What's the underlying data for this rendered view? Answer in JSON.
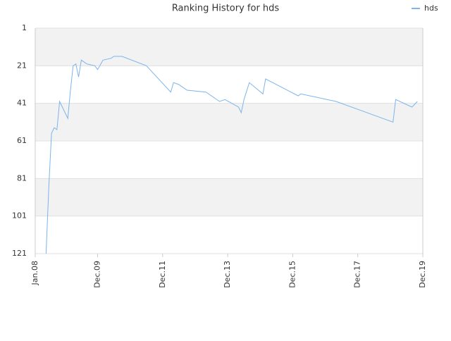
{
  "chart_data": {
    "type": "line",
    "title": "Ranking History for hds",
    "x": [
      "2008-05",
      "2008-06",
      "2008-07",
      "2008-08",
      "2008-09",
      "2008-10",
      "2009-01",
      "2009-02",
      "2009-03",
      "2009-04",
      "2009-05",
      "2009-06",
      "2009-08",
      "2009-11",
      "2009-12",
      "2010-02",
      "2010-05",
      "2010-06",
      "2010-09",
      "2011-06",
      "2012-03",
      "2012-04",
      "2012-06",
      "2012-09",
      "2013-04",
      "2013-09",
      "2013-11",
      "2014-04",
      "2014-05",
      "2014-06",
      "2014-08",
      "2015-01",
      "2015-02",
      "2016-02",
      "2016-03",
      "2017-04",
      "2019-01",
      "2019-02",
      "2019-08",
      "2019-10"
    ],
    "series": [
      {
        "name": "hds",
        "color": "#7cb5ec",
        "values": [
          121,
          86,
          57,
          54,
          55,
          40,
          49,
          34,
          21,
          20,
          27,
          18,
          20,
          21,
          23,
          18,
          17,
          16,
          16,
          21,
          35,
          30,
          31,
          34,
          35,
          40,
          39,
          43,
          46,
          39,
          30,
          36,
          28,
          37,
          36,
          40,
          51,
          39,
          43,
          40
        ]
      }
    ],
    "xlim": [
      "2008-01",
      "2019-12"
    ],
    "xticks": [
      {
        "value": "2008-01",
        "label": "Jan.08"
      },
      {
        "value": "2009-12",
        "label": "Dec.09"
      },
      {
        "value": "2011-12",
        "label": "Dec.11"
      },
      {
        "value": "2013-12",
        "label": "Dec.13"
      },
      {
        "value": "2015-12",
        "label": "Dec.15"
      },
      {
        "value": "2017-12",
        "label": "Dec.17"
      },
      {
        "value": "2019-12",
        "label": "Dec.19"
      }
    ],
    "ylim": [
      1,
      121
    ],
    "yticks": [
      1,
      21,
      41,
      61,
      81,
      101,
      121
    ],
    "y_inverted": true,
    "grid": true,
    "legend": "top-right"
  }
}
